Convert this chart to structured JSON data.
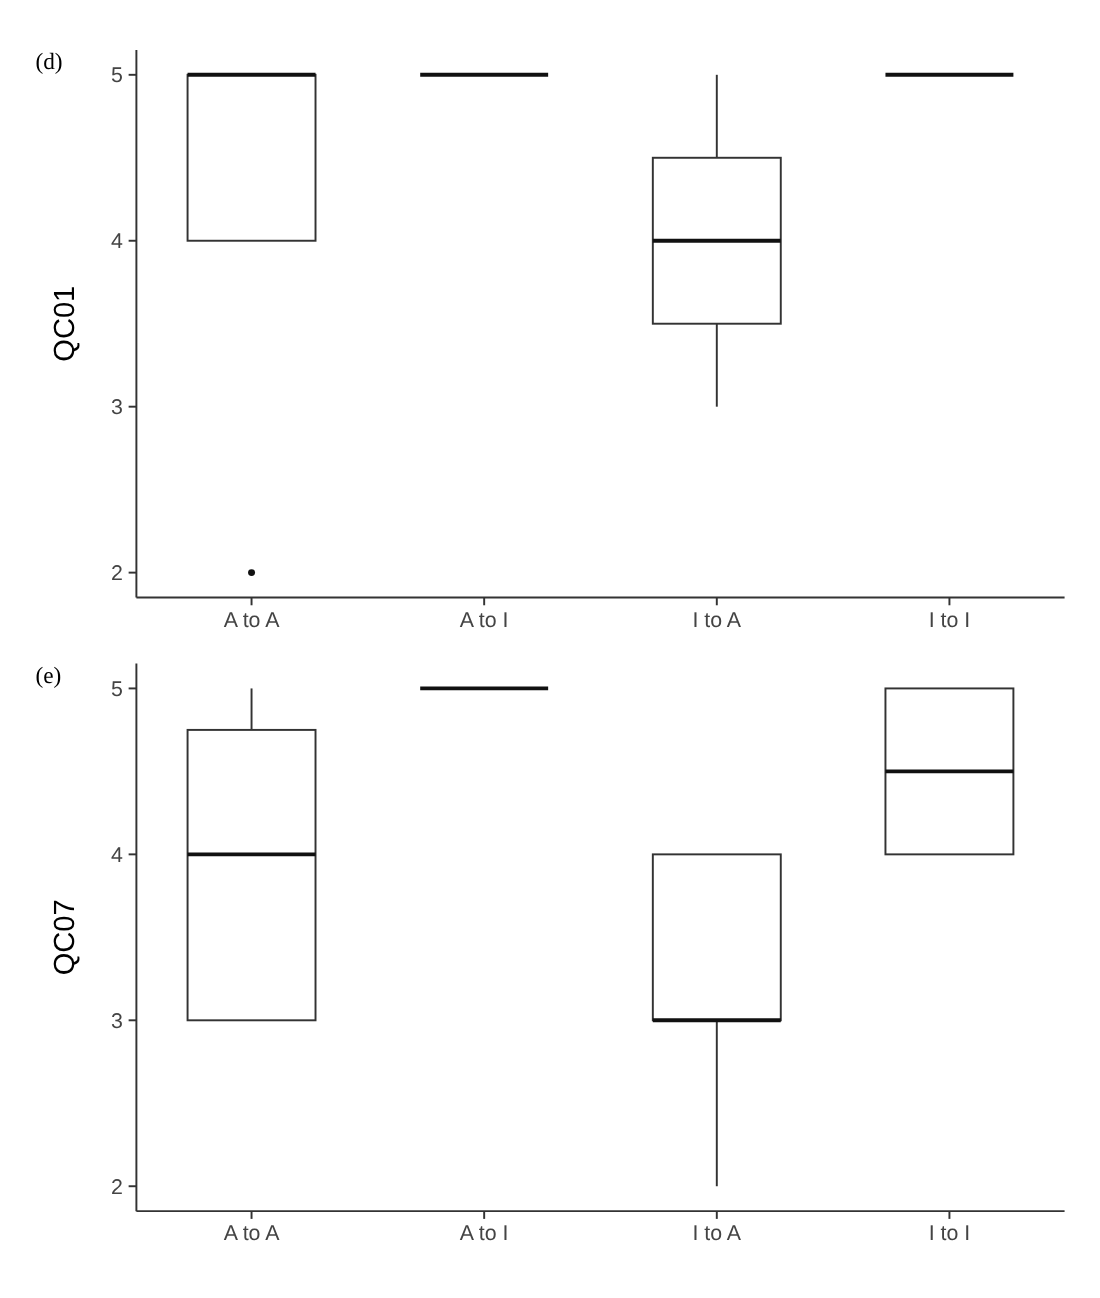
{
  "chart_data": [
    {
      "type": "box",
      "title": "(d)",
      "ylabel": "QC01",
      "categories": [
        "A to A",
        "A to I",
        "I to A",
        "I to I"
      ],
      "ylim": [
        1.85,
        5.15
      ],
      "yticks": [
        2,
        3,
        4,
        5
      ],
      "grid": false,
      "boxes": [
        {
          "low": 4,
          "q1": 4,
          "median": 5,
          "q3": 5,
          "high": 5,
          "outliers": [
            2
          ]
        },
        {
          "low": 5,
          "q1": 5,
          "median": 5,
          "q3": 5,
          "high": 5
        },
        {
          "low": 3,
          "q1": 3.5,
          "median": 4,
          "q3": 4.5,
          "high": 5
        },
        {
          "low": 5,
          "q1": 5,
          "median": 5,
          "q3": 5,
          "high": 5
        }
      ]
    },
    {
      "type": "box",
      "title": "(e)",
      "ylabel": "QC07",
      "categories": [
        "A to A",
        "A to I",
        "I to A",
        "I to I"
      ],
      "ylim": [
        1.85,
        5.15
      ],
      "yticks": [
        2,
        3,
        4,
        5
      ],
      "grid": false,
      "boxes": [
        {
          "low": 3,
          "q1": 3,
          "median": 4,
          "q3": 4.75,
          "high": 5
        },
        {
          "low": 5,
          "q1": 5,
          "median": 5,
          "q3": 5,
          "high": 5
        },
        {
          "low": 2,
          "q1": 3,
          "median": 3,
          "q3": 4,
          "high": 4
        },
        {
          "low": 4,
          "q1": 4,
          "median": 4.5,
          "q3": 5,
          "high": 5
        }
      ]
    }
  ]
}
